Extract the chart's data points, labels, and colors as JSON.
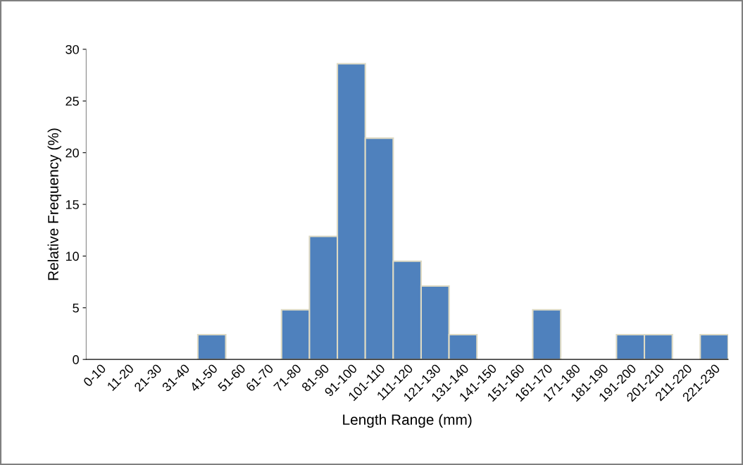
{
  "chart_data": {
    "type": "bar",
    "categories": [
      "0-10",
      "11-20",
      "21-30",
      "31-40",
      "41-50",
      "51-60",
      "61-70",
      "71-80",
      "81-90",
      "91-100",
      "101-110",
      "111-120",
      "121-130",
      "131-140",
      "141-150",
      "151-160",
      "161-170",
      "171-180",
      "181-190",
      "191-200",
      "201-210",
      "211-220",
      "221-230"
    ],
    "values": [
      0,
      0,
      0,
      0,
      2.4,
      0,
      0,
      4.8,
      11.9,
      28.6,
      21.4,
      9.5,
      7.1,
      2.4,
      0,
      0,
      4.8,
      0,
      0,
      2.4,
      2.4,
      0,
      2.4
    ],
    "color": "#4f81bd",
    "xlabel": "Length Range (mm)",
    "ylabel": "Relative Frequency (%)",
    "ylim": [
      0,
      30
    ],
    "yticks": [
      0,
      5,
      10,
      15,
      20,
      25,
      30
    ],
    "grid": false,
    "legend": false
  }
}
